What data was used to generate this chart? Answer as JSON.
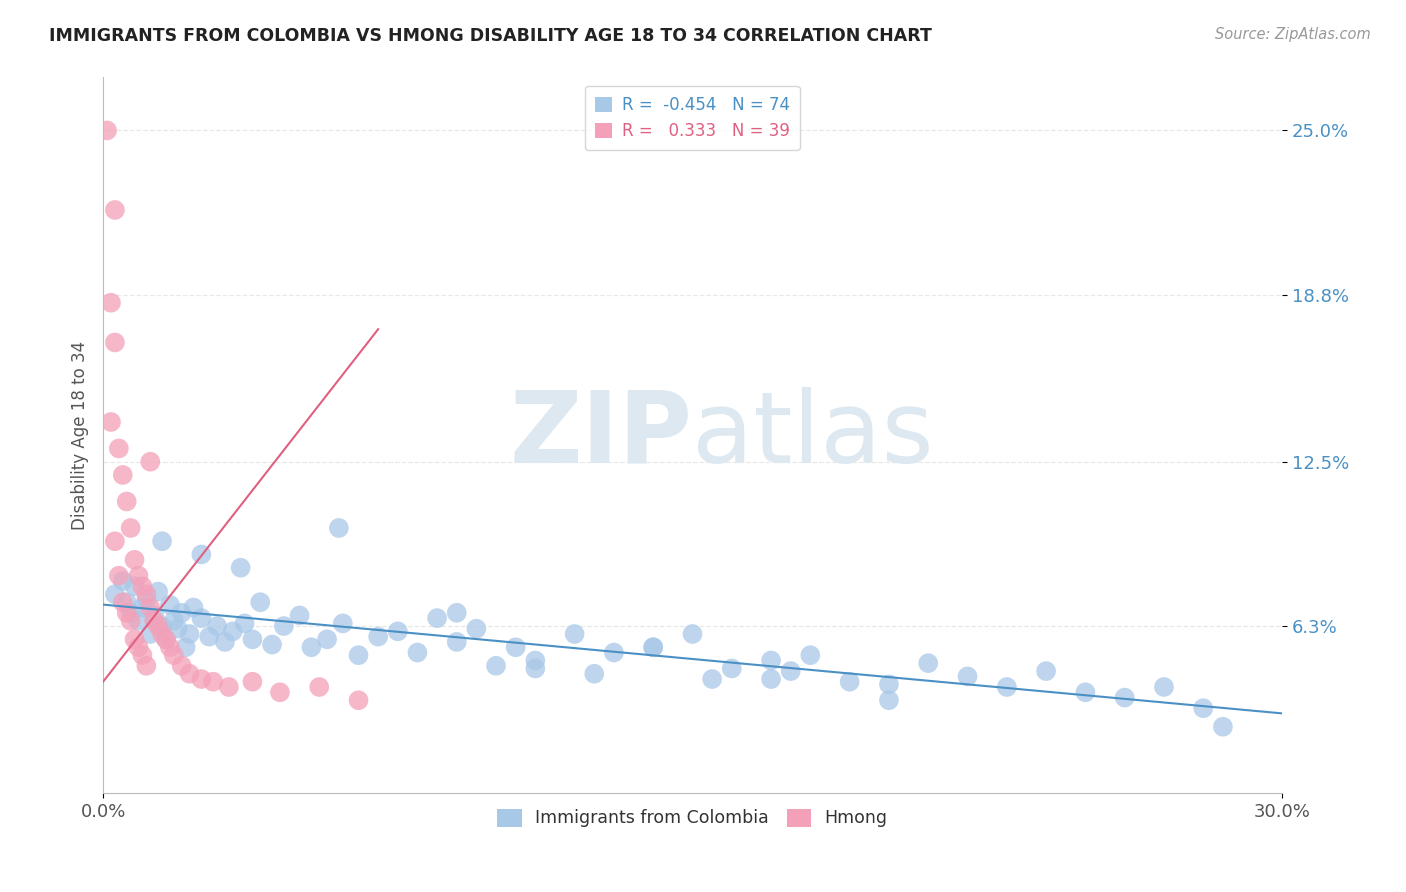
{
  "title": "IMMIGRANTS FROM COLOMBIA VS HMONG DISABILITY AGE 18 TO 34 CORRELATION CHART",
  "source": "Source: ZipAtlas.com",
  "ylabel": "Disability Age 18 to 34",
  "xlim": [
    0.0,
    0.3
  ],
  "ylim": [
    0.0,
    0.27
  ],
  "ytick_positions": [
    0.063,
    0.125,
    0.188,
    0.25
  ],
  "ytick_labels": [
    "6.3%",
    "12.5%",
    "18.8%",
    "25.0%"
  ],
  "colombia_R": -0.454,
  "colombia_N": 74,
  "hmong_R": 0.333,
  "hmong_N": 39,
  "colombia_color": "#a8c8e8",
  "colombia_line_color": "#4a90c4",
  "hmong_color": "#f4a0b8",
  "hmong_line_color": "#e06080",
  "watermark_color": "#dde8f0",
  "background_color": "#ffffff",
  "grid_color": "#e8e8e8",
  "colombia_x": [
    0.003,
    0.005,
    0.006,
    0.007,
    0.008,
    0.009,
    0.01,
    0.011,
    0.012,
    0.013,
    0.014,
    0.015,
    0.016,
    0.017,
    0.018,
    0.019,
    0.02,
    0.021,
    0.022,
    0.023,
    0.025,
    0.027,
    0.029,
    0.031,
    0.033,
    0.036,
    0.038,
    0.04,
    0.043,
    0.046,
    0.05,
    0.053,
    0.057,
    0.061,
    0.065,
    0.07,
    0.075,
    0.08,
    0.085,
    0.09,
    0.095,
    0.1,
    0.105,
    0.11,
    0.12,
    0.125,
    0.13,
    0.14,
    0.15,
    0.155,
    0.16,
    0.17,
    0.175,
    0.18,
    0.19,
    0.2,
    0.21,
    0.22,
    0.23,
    0.24,
    0.25,
    0.26,
    0.27,
    0.28,
    0.285,
    0.015,
    0.025,
    0.035,
    0.06,
    0.09,
    0.11,
    0.14,
    0.17,
    0.2
  ],
  "colombia_y": [
    0.075,
    0.08,
    0.072,
    0.068,
    0.078,
    0.065,
    0.07,
    0.073,
    0.06,
    0.067,
    0.076,
    0.063,
    0.058,
    0.071,
    0.065,
    0.062,
    0.068,
    0.055,
    0.06,
    0.07,
    0.066,
    0.059,
    0.063,
    0.057,
    0.061,
    0.064,
    0.058,
    0.072,
    0.056,
    0.063,
    0.067,
    0.055,
    0.058,
    0.064,
    0.052,
    0.059,
    0.061,
    0.053,
    0.066,
    0.057,
    0.062,
    0.048,
    0.055,
    0.05,
    0.06,
    0.045,
    0.053,
    0.055,
    0.06,
    0.043,
    0.047,
    0.05,
    0.046,
    0.052,
    0.042,
    0.041,
    0.049,
    0.044,
    0.04,
    0.046,
    0.038,
    0.036,
    0.04,
    0.032,
    0.025,
    0.095,
    0.09,
    0.085,
    0.1,
    0.068,
    0.047,
    0.055,
    0.043,
    0.035
  ],
  "hmong_x": [
    0.001,
    0.002,
    0.002,
    0.003,
    0.003,
    0.004,
    0.004,
    0.005,
    0.005,
    0.006,
    0.006,
    0.007,
    0.007,
    0.008,
    0.008,
    0.009,
    0.009,
    0.01,
    0.01,
    0.011,
    0.011,
    0.012,
    0.013,
    0.014,
    0.015,
    0.016,
    0.017,
    0.018,
    0.02,
    0.022,
    0.025,
    0.028,
    0.032,
    0.038,
    0.045,
    0.055,
    0.065,
    0.012,
    0.003
  ],
  "hmong_y": [
    0.25,
    0.185,
    0.14,
    0.17,
    0.095,
    0.13,
    0.082,
    0.12,
    0.072,
    0.11,
    0.068,
    0.1,
    0.065,
    0.088,
    0.058,
    0.082,
    0.055,
    0.078,
    0.052,
    0.075,
    0.048,
    0.07,
    0.065,
    0.063,
    0.06,
    0.058,
    0.055,
    0.052,
    0.048,
    0.045,
    0.043,
    0.042,
    0.04,
    0.042,
    0.038,
    0.04,
    0.035,
    0.125,
    0.22
  ],
  "hmong_line_x": [
    0.0,
    0.07
  ],
  "hmong_line_y_start": 0.042,
  "hmong_line_y_end": 0.175
}
